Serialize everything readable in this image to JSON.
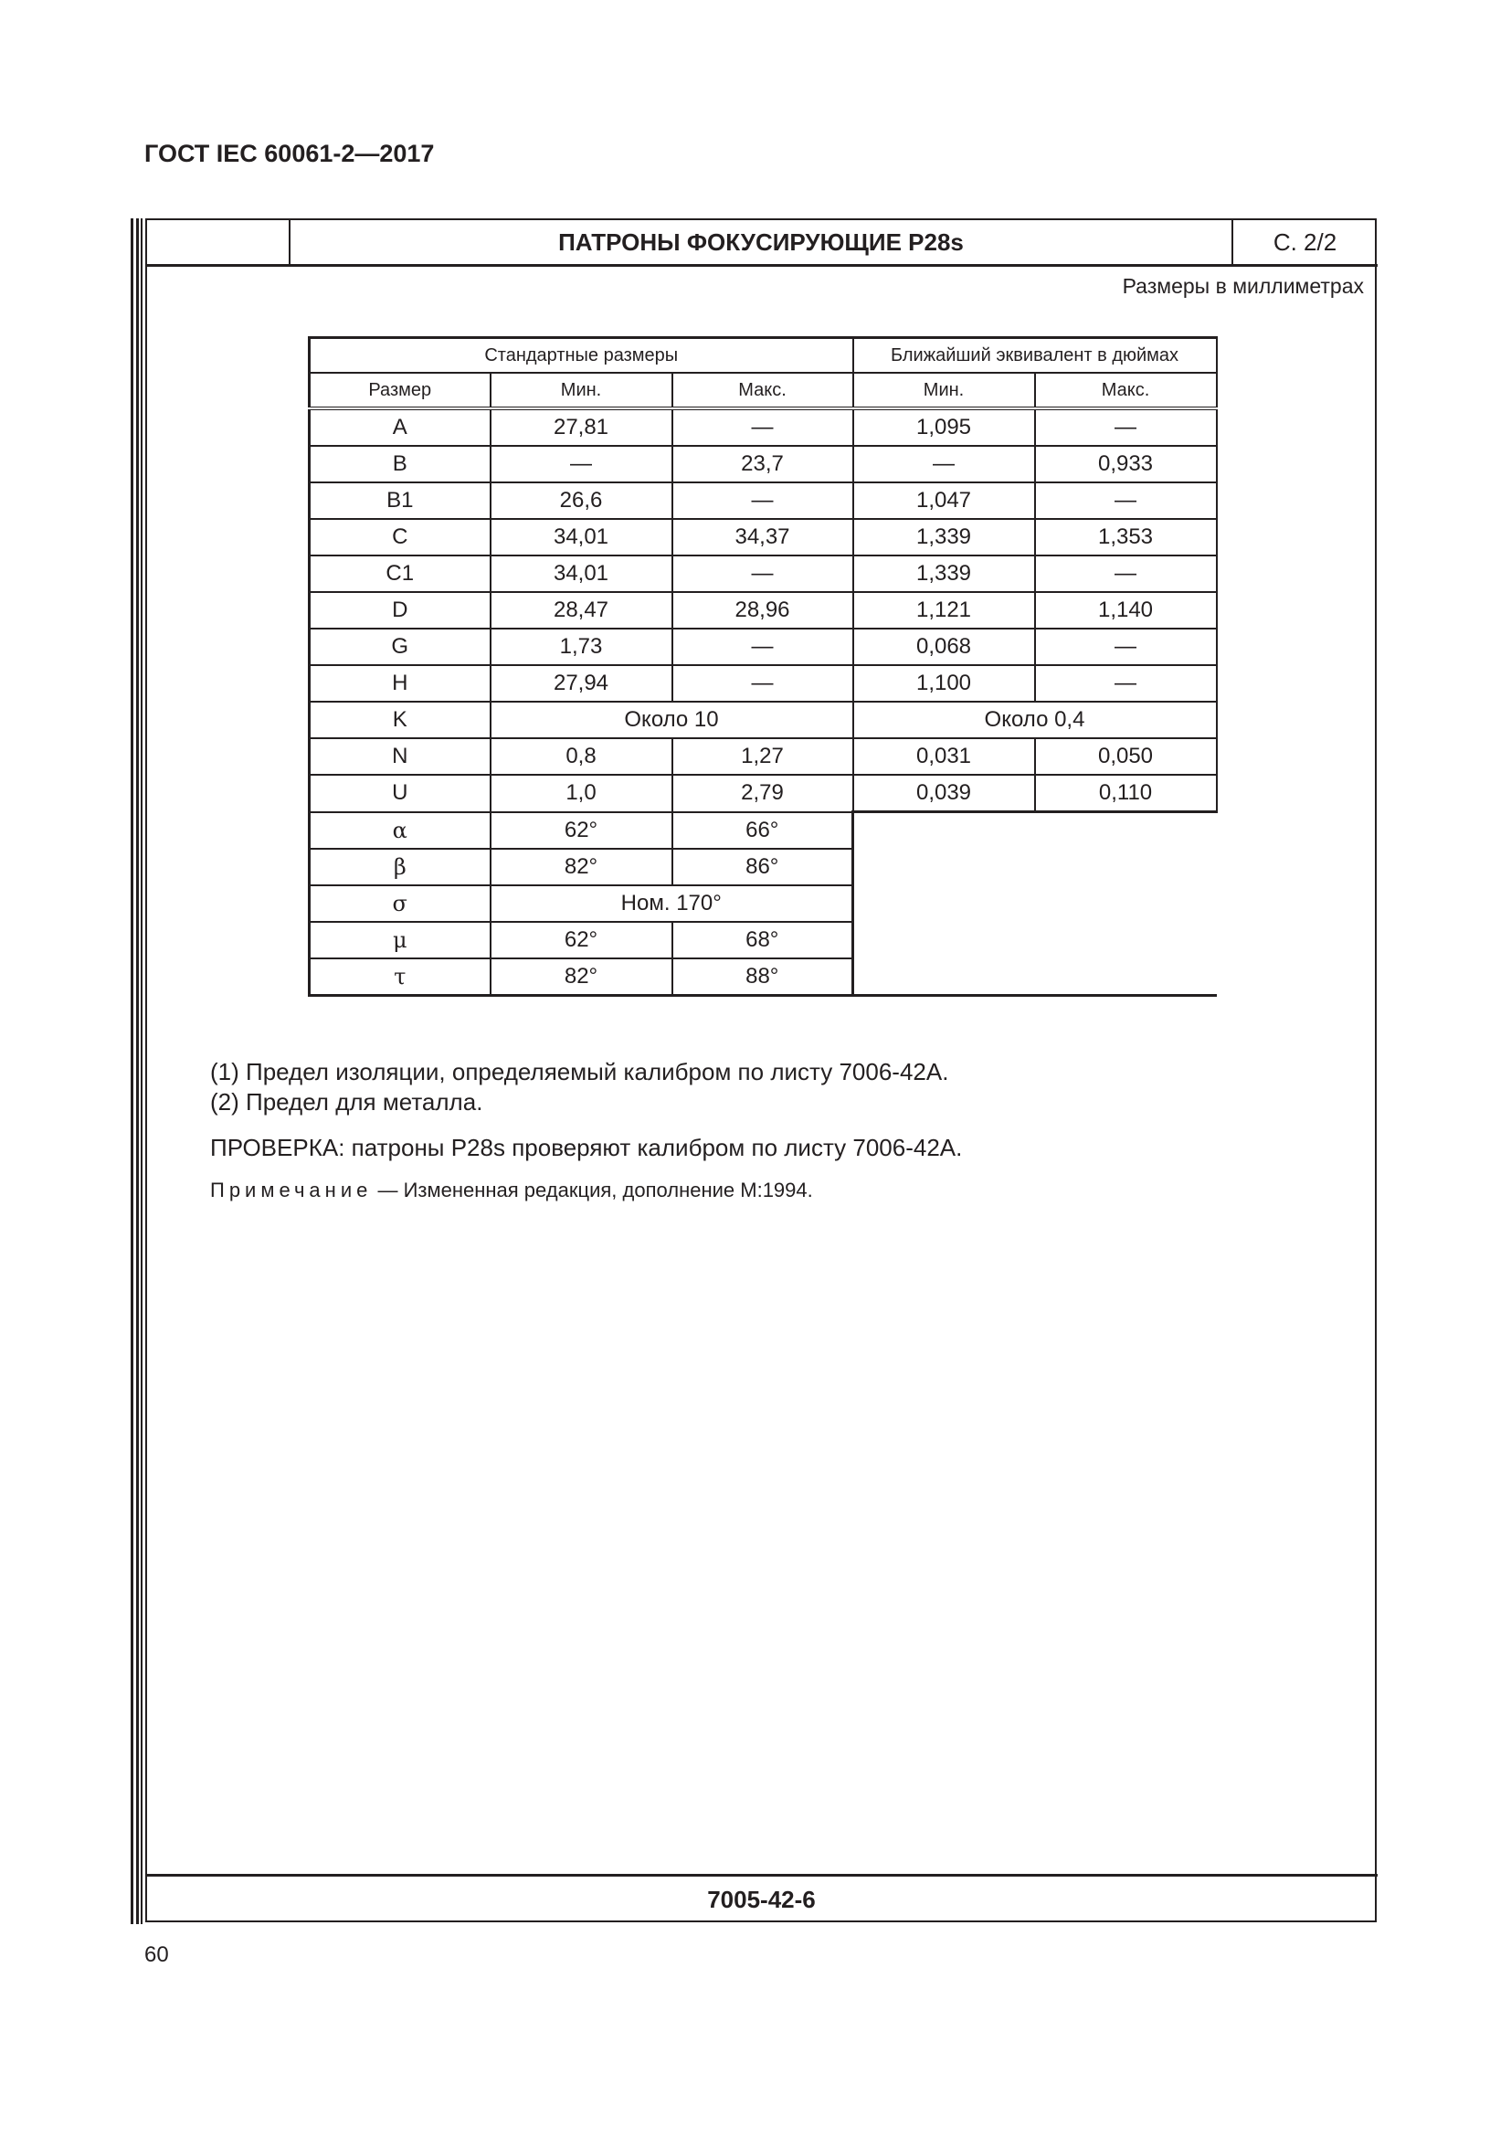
{
  "document_id": "ГОСТ IEC 60061-2—2017",
  "sheet": {
    "title": "ПАТРОНЫ ФОКУСИРУЮЩИЕ P28s",
    "page": "С. 2/2",
    "code": "7005-42-6"
  },
  "units_note": "Размеры в миллиметрах",
  "table": {
    "group_headers": [
      "Стандартные размеры",
      "Ближайший эквивалент в дюймах"
    ],
    "col_headers": [
      "Размер",
      "Мин.",
      "Макс.",
      "Мин.",
      "Макс."
    ],
    "rows": [
      {
        "size": "A",
        "mm": [
          "27,81",
          "—"
        ],
        "in": [
          "1,095",
          "—"
        ]
      },
      {
        "size": "B",
        "mm": [
          "—",
          "23,7"
        ],
        "in": [
          "—",
          "0,933"
        ]
      },
      {
        "size": "B1",
        "mm": [
          "26,6",
          "—"
        ],
        "in": [
          "1,047",
          "—"
        ]
      },
      {
        "size": "C",
        "mm": [
          "34,01",
          "34,37"
        ],
        "in": [
          "1,339",
          "1,353"
        ]
      },
      {
        "size": "C1",
        "mm": [
          "34,01",
          "—"
        ],
        "in": [
          "1,339",
          "—"
        ]
      },
      {
        "size": "D",
        "mm": [
          "28,47",
          "28,96"
        ],
        "in": [
          "1,121",
          "1,140"
        ]
      },
      {
        "size": "G",
        "mm": [
          "1,73",
          "—"
        ],
        "in": [
          "0,068",
          "—"
        ]
      },
      {
        "size": "H",
        "mm": [
          "27,94",
          "—"
        ],
        "in": [
          "1,100",
          "—"
        ]
      },
      {
        "size": "K",
        "mm_span": "Около 10",
        "in_span": "Около 0,4"
      },
      {
        "size": "N",
        "mm": [
          "0,8",
          "1,27"
        ],
        "in": [
          "0,031",
          "0,050"
        ]
      },
      {
        "size": "U",
        "mm": [
          "1,0",
          "2,79"
        ],
        "in": [
          "0,039",
          "0,110"
        ]
      },
      {
        "size": "α",
        "mm": [
          "62°",
          "66°"
        ]
      },
      {
        "size": "β",
        "mm": [
          "82°",
          "86°"
        ]
      },
      {
        "size": "σ",
        "mm_span": "Ном. 170°"
      },
      {
        "size": "μ",
        "mm": [
          "62°",
          "68°"
        ]
      },
      {
        "size": "τ",
        "mm": [
          "82°",
          "88°"
        ]
      }
    ]
  },
  "notes": [
    "(1) Предел изоляции, определяемый калибром по листу 7006-42А.",
    "(2) Предел для металла."
  ],
  "check": "ПРОВЕРКА: патроны P28s проверяют калибром по листу 7006-42А.",
  "remark": {
    "label": "Примечание",
    "dash": "—",
    "text": "Измененная редакция, дополнение М:1994."
  },
  "page_number": "60"
}
